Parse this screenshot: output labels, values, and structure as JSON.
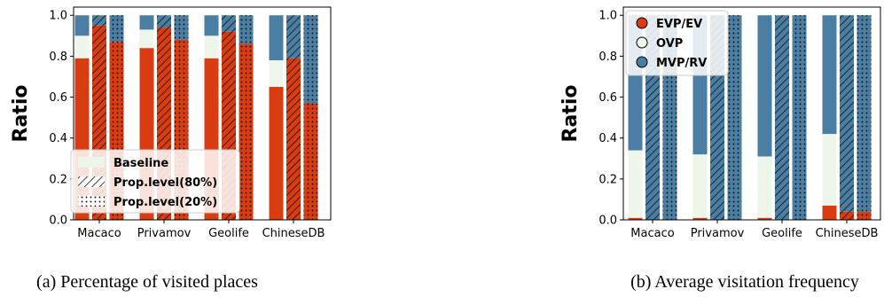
{
  "colors": {
    "evp": "#d93c10",
    "ovp": "#eef6ec",
    "mvp": "#4a7ea3"
  },
  "chart_data": [
    {
      "type": "bar",
      "stacked": true,
      "title": "",
      "xlabel": "",
      "ylabel": "Ratio",
      "ylim": [
        0,
        1.04
      ],
      "yticks": [
        "0.0",
        "0.2",
        "0.4",
        "0.6",
        "0.8",
        "1.0"
      ],
      "grid": false,
      "categories": [
        "Macaco",
        "Privamov",
        "Geolife",
        "ChineseDB"
      ],
      "segment_order": [
        "evp",
        "ovp",
        "mvp"
      ],
      "series": [
        {
          "name": "Baseline",
          "pattern": "none",
          "stacks": [
            [
              0.79,
              0.11,
              0.1
            ],
            [
              0.84,
              0.09,
              0.07
            ],
            [
              0.79,
              0.11,
              0.1
            ],
            [
              0.65,
              0.13,
              0.22
            ]
          ]
        },
        {
          "name": "Prop.level(80%)",
          "pattern": "hatch",
          "stacks": [
            [
              0.95,
              0.0,
              0.05
            ],
            [
              0.94,
              0.0,
              0.06
            ],
            [
              0.92,
              0.0,
              0.08
            ],
            [
              0.79,
              0.0,
              0.21
            ]
          ]
        },
        {
          "name": "Prop.level(20%)",
          "pattern": "dots",
          "stacks": [
            [
              0.87,
              0.0,
              0.13
            ],
            [
              0.88,
              0.0,
              0.12
            ],
            [
              0.86,
              0.0,
              0.14
            ],
            [
              0.57,
              0.0,
              0.43
            ]
          ]
        }
      ],
      "legend": {
        "position": "lower left",
        "entries": [
          {
            "label": "Baseline",
            "swatch_color": "#eef6ec",
            "pattern": "none"
          },
          {
            "label": "Prop.level(80%)",
            "swatch_color": "#ffffff",
            "pattern": "hatch"
          },
          {
            "label": "Prop.level(20%)",
            "swatch_color": "#ffffff",
            "pattern": "dots"
          }
        ]
      },
      "caption": "(a) Percentage of visited places"
    },
    {
      "type": "bar",
      "stacked": true,
      "title": "",
      "xlabel": "",
      "ylabel": "Ratio",
      "ylim": [
        0,
        1.04
      ],
      "yticks": [
        "0.0",
        "0.2",
        "0.4",
        "0.6",
        "0.8",
        "1.0"
      ],
      "grid": false,
      "categories": [
        "Macaco",
        "Privamov",
        "Geolife",
        "ChineseDB"
      ],
      "segment_order": [
        "evp",
        "ovp",
        "mvp"
      ],
      "series": [
        {
          "pattern": "none",
          "stacks": [
            [
              0.01,
              0.33,
              0.66
            ],
            [
              0.01,
              0.31,
              0.68
            ],
            [
              0.01,
              0.3,
              0.69
            ],
            [
              0.07,
              0.35,
              0.58
            ]
          ]
        },
        {
          "pattern": "hatch",
          "stacks": [
            [
              0.0,
              0.0,
              1.0
            ],
            [
              0.0,
              0.0,
              1.0
            ],
            [
              0.0,
              0.0,
              1.0
            ],
            [
              0.04,
              0.0,
              0.96
            ]
          ]
        },
        {
          "pattern": "dots",
          "stacks": [
            [
              0.0,
              0.0,
              1.0
            ],
            [
              0.0,
              0.0,
              1.0
            ],
            [
              0.0,
              0.0,
              1.0
            ],
            [
              0.04,
              0.0,
              0.96
            ]
          ]
        }
      ],
      "legend": {
        "position": "upper left",
        "entries": [
          {
            "label": "EVP/EV",
            "marker": "evp"
          },
          {
            "label": "OVP",
            "marker": "ovp"
          },
          {
            "label": "MVP/RV",
            "marker": "mvp"
          }
        ]
      },
      "caption": "(b) Average visitation frequency"
    }
  ]
}
